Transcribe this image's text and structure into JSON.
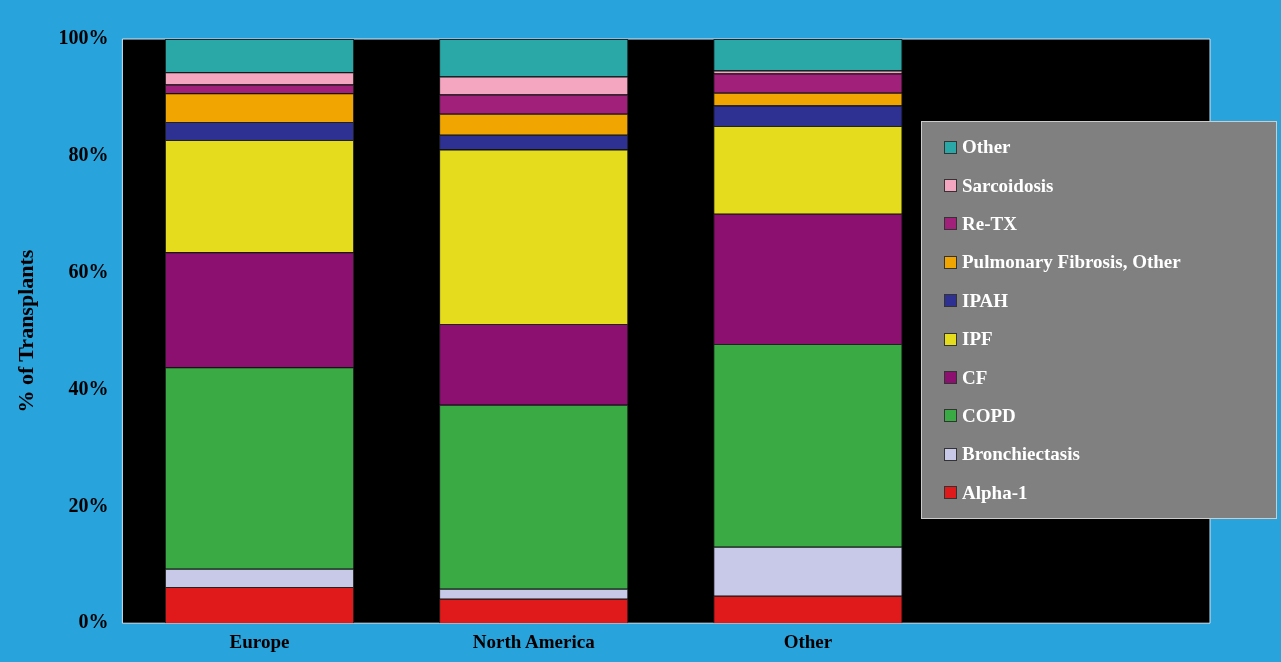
{
  "chart_data": {
    "type": "bar",
    "stacked": true,
    "ylabel": "% of Transplants",
    "categories": [
      "Europe",
      "North America",
      "Other"
    ],
    "series": [
      {
        "name": "Alpha-1",
        "color": "#e01a1a",
        "values": [
          6.2,
          4.2,
          4.7
        ]
      },
      {
        "name": "Bronchiectasis",
        "color": "#c8c8e8",
        "values": [
          3.1,
          1.7,
          8.4
        ]
      },
      {
        "name": "COPD",
        "color": "#3aaa45",
        "values": [
          34.5,
          31.5,
          34.7
        ]
      },
      {
        "name": "CF",
        "color": "#8b1070",
        "values": [
          19.7,
          13.8,
          22.3
        ]
      },
      {
        "name": "IPF",
        "color": "#e6dc1e",
        "values": [
          19.2,
          29.9,
          15.0
        ]
      },
      {
        "name": "IPAH",
        "color": "#2e3192",
        "values": [
          3.1,
          2.5,
          3.5
        ]
      },
      {
        "name": "Pulmonary Fibrosis, Other",
        "color": "#f0a500",
        "values": [
          4.9,
          3.6,
          2.2
        ]
      },
      {
        "name": "Re-TX",
        "color": "#a0207a",
        "values": [
          1.5,
          3.3,
          3.3
        ]
      },
      {
        "name": "Sarcoidosis",
        "color": "#f4a6c0",
        "values": [
          2.1,
          3.1,
          0.5
        ]
      },
      {
        "name": "Other",
        "color": "#2aa8a8",
        "values": [
          5.7,
          6.4,
          5.4
        ]
      }
    ],
    "ylim": [
      0,
      100
    ],
    "yticks": [
      {
        "value": 0,
        "label": "0%"
      },
      {
        "value": 20,
        "label": "20%"
      },
      {
        "value": 40,
        "label": "40%"
      },
      {
        "value": 60,
        "label": "60%"
      },
      {
        "value": 80,
        "label": "80%"
      },
      {
        "value": 100,
        "label": "100%"
      }
    ],
    "grid": false,
    "legend": "right"
  }
}
